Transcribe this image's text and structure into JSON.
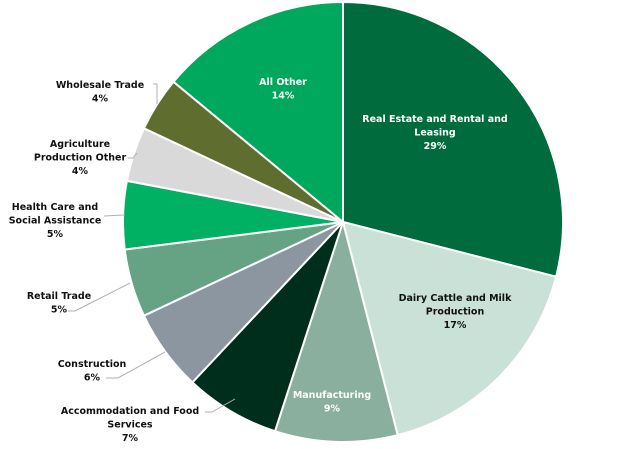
{
  "chart_data": {
    "type": "pie",
    "start": "top",
    "direction": "clockwise",
    "slices": [
      {
        "label": [
          "Real Estate and Rental and",
          "Leasing"
        ],
        "value": 29,
        "display": "29%",
        "color": "#006b3c",
        "label_color": "#ffffff"
      },
      {
        "label": [
          "Dairy Cattle and Milk",
          "Production"
        ],
        "value": 17,
        "display": "17%",
        "color": "#c9e1d6",
        "label_color": "#111111"
      },
      {
        "label": [
          "Manufacturing"
        ],
        "value": 9,
        "display": "9%",
        "color": "#8aaf9f",
        "label_color": "#ffffff"
      },
      {
        "label": [
          "Accommodation and Food",
          "Services"
        ],
        "value": 7,
        "display": "7%",
        "color": "#002e1c",
        "label_color": "#111111"
      },
      {
        "label": [
          "Construction"
        ],
        "value": 6,
        "display": "6%",
        "color": "#8b96a0",
        "label_color": "#111111"
      },
      {
        "label": [
          "Retail Trade"
        ],
        "value": 5,
        "display": "5%",
        "color": "#66a385",
        "label_color": "#111111"
      },
      {
        "label": [
          "Health Care and",
          "Social Assistance"
        ],
        "value": 5,
        "display": "5%",
        "color": "#00b164",
        "label_color": "#111111"
      },
      {
        "label": [
          "Agriculture",
          "Production Other"
        ],
        "value": 4,
        "display": "4%",
        "color": "#d9d9d9",
        "label_color": "#111111"
      },
      {
        "label": [
          "Wholesale Trade"
        ],
        "value": 4,
        "display": "4%",
        "color": "#5f6e2e",
        "label_color": "#111111"
      },
      {
        "label": [
          "All Other"
        ],
        "value": 14,
        "display": "14%",
        "color": "#00a85e",
        "label_color": "#ffffff"
      }
    ]
  }
}
